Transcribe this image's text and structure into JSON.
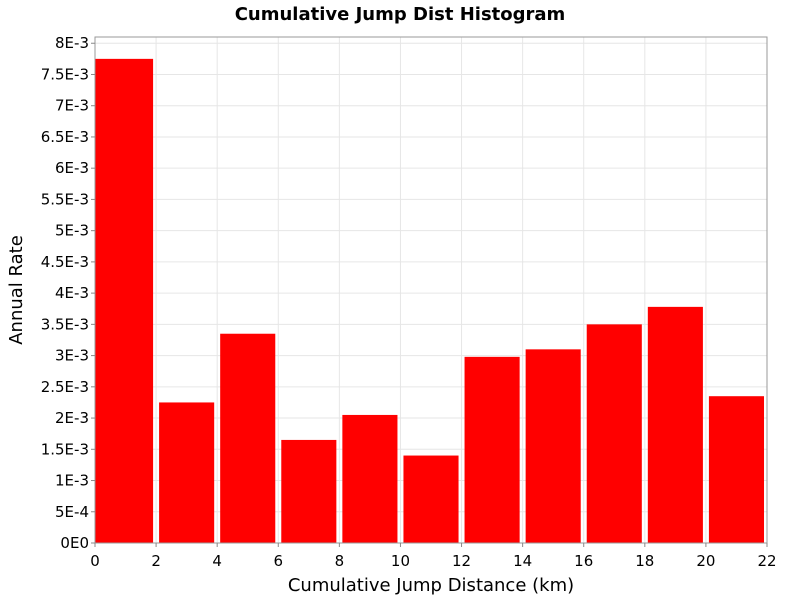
{
  "chart_data": {
    "type": "bar",
    "title": "Cumulative Jump Dist Histogram",
    "xlabel": "Cumulative Jump Distance (km)",
    "ylabel": "Annual Rate",
    "bar_width": 2,
    "x_start": [
      0,
      2,
      4,
      6,
      8,
      10,
      12,
      14,
      16,
      18,
      20
    ],
    "values": [
      0.00775,
      0.00225,
      0.00335,
      0.00165,
      0.00205,
      0.0014,
      0.00298,
      0.0031,
      0.0035,
      0.00378,
      0.00235
    ],
    "xlim": [
      0,
      22
    ],
    "ylim": [
      0,
      0.0081
    ],
    "x_ticks": [
      0,
      2,
      4,
      6,
      8,
      10,
      12,
      14,
      16,
      18,
      20,
      22
    ],
    "x_tick_labels": [
      "0",
      "2",
      "4",
      "6",
      "8",
      "10",
      "12",
      "14",
      "16",
      "18",
      "20",
      "22"
    ],
    "y_ticks": [
      0,
      0.0005,
      0.001,
      0.0015,
      0.002,
      0.0025,
      0.003,
      0.0035,
      0.004,
      0.0045,
      0.005,
      0.0055,
      0.006,
      0.0065,
      0.007,
      0.0075,
      0.008
    ],
    "y_tick_labels": [
      "0E0",
      "5E-4",
      "1E-3",
      "1.5E-3",
      "2E-3",
      "2.5E-3",
      "3E-3",
      "3.5E-3",
      "4E-3",
      "4.5E-3",
      "5E-3",
      "5.5E-3",
      "6E-3",
      "6.5E-3",
      "7E-3",
      "7.5E-3",
      "8E-3"
    ],
    "grid": true,
    "bar_color": "#ff0000",
    "grid_color": "#e6e6e6",
    "plot_border_color": "#999999"
  }
}
